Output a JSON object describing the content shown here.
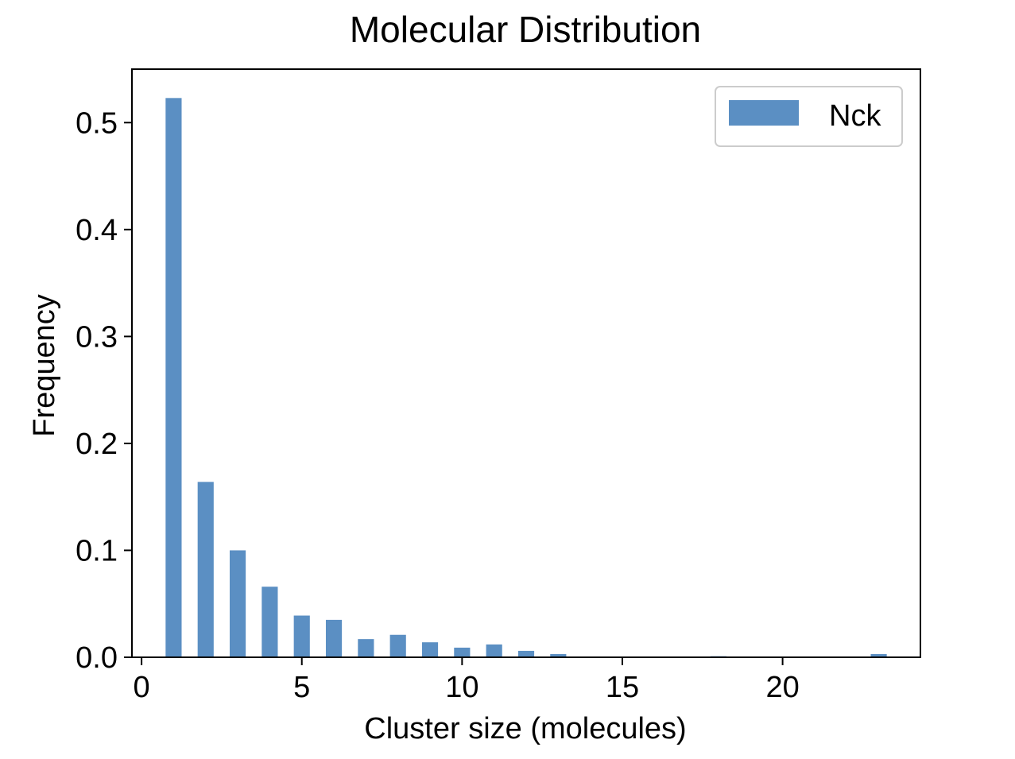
{
  "chart_data": {
    "type": "bar",
    "title": "Molecular Distribution",
    "xlabel": "Cluster size (molecules)",
    "ylabel": "Frequency",
    "xlim": [
      -0.3,
      24.3
    ],
    "ylim": [
      0,
      0.55
    ],
    "xticks": [
      0,
      5,
      10,
      15,
      20
    ],
    "xtick_labels": [
      "0",
      "5",
      "10",
      "15",
      "20"
    ],
    "yticks": [
      0.0,
      0.1,
      0.2,
      0.3,
      0.4,
      0.5
    ],
    "ytick_labels": [
      "0.0",
      "0.1",
      "0.2",
      "0.3",
      "0.4",
      "0.5"
    ],
    "grid": false,
    "legend_position": "top-right",
    "bar_width": 0.5,
    "series": [
      {
        "name": "Nck",
        "color": "#5b8fc3",
        "x": [
          1,
          2,
          3,
          4,
          5,
          6,
          7,
          8,
          9,
          10,
          11,
          12,
          13,
          18,
          23
        ],
        "values": [
          0.523,
          0.164,
          0.1,
          0.066,
          0.039,
          0.035,
          0.017,
          0.021,
          0.014,
          0.009,
          0.012,
          0.006,
          0.003,
          0.001,
          0.003
        ]
      }
    ]
  }
}
